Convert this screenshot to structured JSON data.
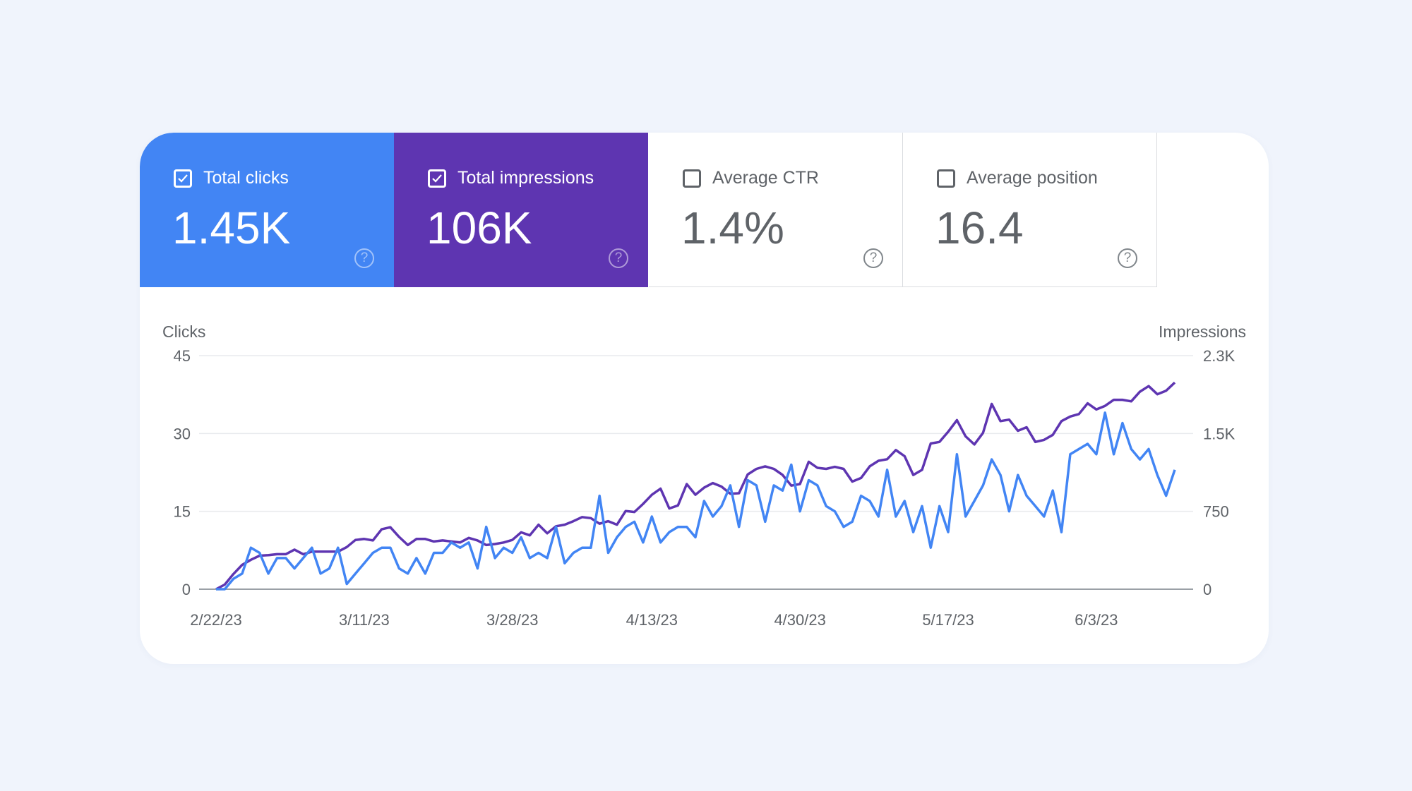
{
  "tiles": [
    {
      "label": "Total clicks",
      "value": "1.45K",
      "checked": true,
      "color": "#4285f4"
    },
    {
      "label": "Total impressions",
      "value": "106K",
      "checked": true,
      "color": "#5e35b1"
    },
    {
      "label": "Average CTR",
      "value": "1.4%",
      "checked": false
    },
    {
      "label": "Average position",
      "value": "16.4",
      "checked": false
    }
  ],
  "help_glyph": "?",
  "chart_data": {
    "type": "line",
    "grid": true,
    "x_range": [
      "2/22/23",
      "6/12/23"
    ],
    "x_ticks": [
      "2/22/23",
      "3/11/23",
      "3/28/23",
      "4/13/23",
      "4/30/23",
      "5/17/23",
      "6/3/23"
    ],
    "left_axis": {
      "label": "Clicks",
      "ticks": [
        "0",
        "15",
        "30",
        "45"
      ],
      "range": [
        0,
        45
      ]
    },
    "right_axis": {
      "label": "Impressions",
      "ticks": [
        "0",
        "750",
        "1.5K",
        "2.3K"
      ],
      "range": [
        0,
        2300
      ]
    },
    "series": [
      {
        "axis": "left",
        "color": "#4285f4",
        "values": [
          0,
          0,
          2,
          3,
          8,
          7,
          3,
          6,
          6,
          4,
          6,
          8,
          3,
          4,
          8,
          1,
          3,
          5,
          7,
          8,
          8,
          4,
          3,
          6,
          3,
          7,
          7,
          9,
          8,
          9,
          4,
          12,
          6,
          8,
          7,
          10,
          6,
          7,
          6,
          12,
          5,
          7,
          8,
          8,
          18,
          7,
          10,
          12,
          13,
          9,
          14,
          9,
          11,
          12,
          12,
          10,
          17,
          14,
          16,
          20,
          12,
          21,
          20,
          13,
          20,
          19,
          24,
          15,
          21,
          20,
          16,
          15,
          12,
          13,
          18,
          17,
          14,
          23,
          14,
          17,
          11,
          16,
          8,
          16,
          11,
          26,
          14,
          17,
          20,
          25,
          22,
          15,
          22,
          18,
          16,
          14,
          19,
          11,
          26,
          27,
          28,
          26,
          34,
          26,
          32,
          27,
          25,
          27,
          22,
          18,
          23
        ]
      },
      {
        "axis": "right",
        "color": "#5e35b1",
        "values": [
          0,
          45,
          150,
          240,
          290,
          330,
          335,
          345,
          345,
          390,
          345,
          370,
          370,
          370,
          370,
          415,
          485,
          495,
          480,
          590,
          610,
          515,
          435,
          495,
          495,
          470,
          480,
          470,
          460,
          505,
          480,
          435,
          445,
          460,
          485,
          560,
          530,
          635,
          550,
          620,
          635,
          670,
          710,
          700,
          645,
          670,
          635,
          770,
          760,
          840,
          930,
          990,
          795,
          825,
          1035,
          930,
          1000,
          1045,
          1010,
          940,
          945,
          1130,
          1185,
          1210,
          1185,
          1125,
          1020,
          1035,
          1255,
          1195,
          1185,
          1205,
          1185,
          1060,
          1095,
          1210,
          1265,
          1280,
          1370,
          1310,
          1125,
          1175,
          1435,
          1450,
          1550,
          1665,
          1505,
          1425,
          1540,
          1825,
          1655,
          1670,
          1560,
          1595,
          1450,
          1470,
          1520,
          1655,
          1700,
          1725,
          1830,
          1770,
          1805,
          1865,
          1865,
          1850,
          1945,
          2000,
          1920,
          1955,
          2035
        ]
      }
    ]
  }
}
